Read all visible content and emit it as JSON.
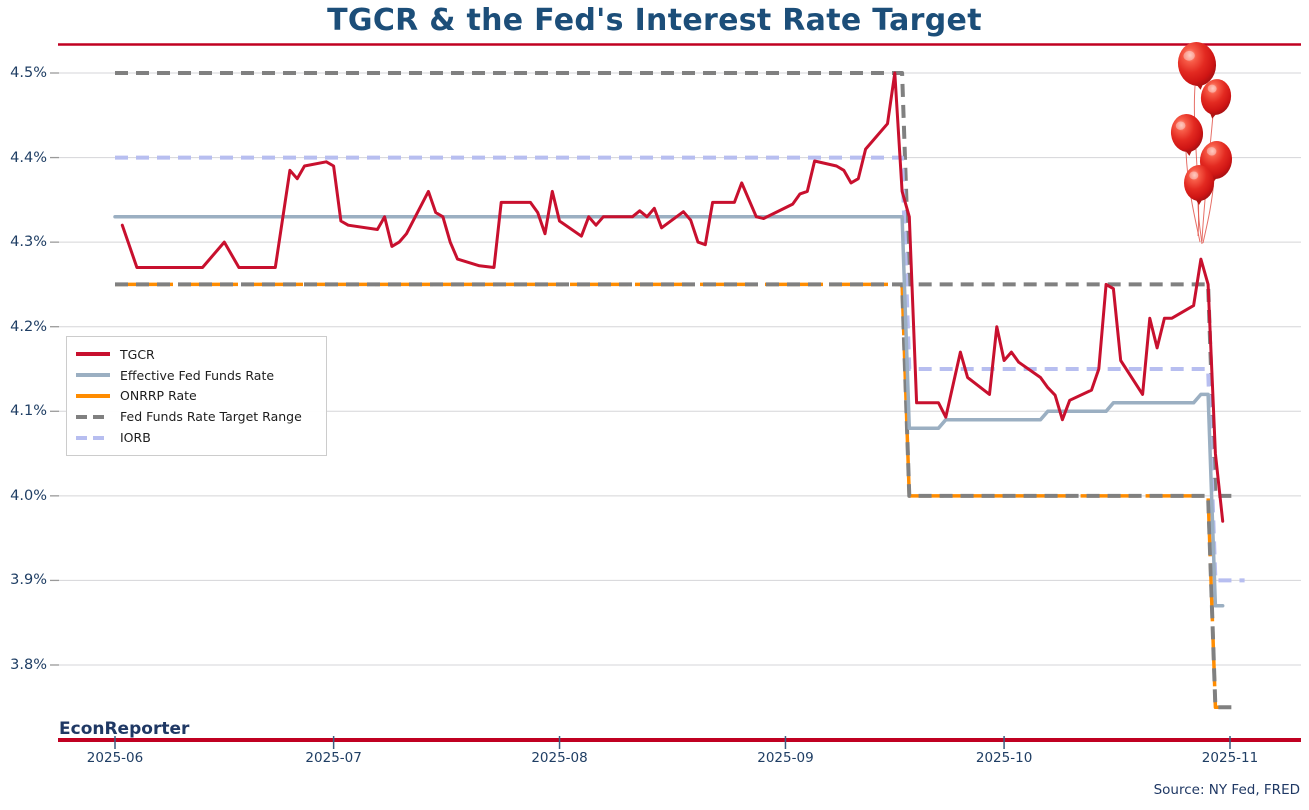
{
  "title": "TGCR & the Fed's Interest Rate Target",
  "branding": {
    "watermark": "EconReporter",
    "source": "Source: NY Fed, FRED"
  },
  "colors": {
    "title": "#1C4E79",
    "axis_label": "#1F3E64",
    "rule_red": "#C00021",
    "grid": "#D5D5D8",
    "y_tick": "#9a9a9a",
    "x_tick": "#3c5e80",
    "tgcr": "#C8102E",
    "effr": "#9BAFC2",
    "onrrp": "#FF8C00",
    "target": "#808080",
    "iorb": "#B7BEF0",
    "balloon": "#DA1F1C"
  },
  "decoration": {
    "balloons_count": 5,
    "balloon_color": "#DA1F1C"
  },
  "legend": [
    {
      "label": "TGCR",
      "color": "#C8102E",
      "dash": "solid"
    },
    {
      "label": "Effective Fed Funds Rate",
      "color": "#9BAFC2",
      "dash": "solid"
    },
    {
      "label": "ONRRP Rate",
      "color": "#FF8C00",
      "dash": "solid"
    },
    {
      "label": "Fed Funds Rate Target Range",
      "color": "#808080",
      "dash": "dashed"
    },
    {
      "label": "IORB",
      "color": "#B7BEF0",
      "dash": "dashed"
    }
  ],
  "chart_data": {
    "type": "line",
    "title": "TGCR & the Fed's Interest Rate Target",
    "xlabel": "",
    "ylabel": "",
    "grid": "horizontal",
    "legend_position": "center-left",
    "x_axis": {
      "tick_labels": [
        "2025-06",
        "2025-07",
        "2025-08",
        "2025-09",
        "2025-10",
        "2025-11"
      ],
      "tick_dates": [
        "2025-06-01",
        "2025-07-01",
        "2025-08-01",
        "2025-09-01",
        "2025-10-01",
        "2025-11-01"
      ],
      "range": [
        "2025-05-24",
        "2025-11-10"
      ]
    },
    "y_axis": {
      "tick_labels": [
        "4.5%",
        "4.4%",
        "4.3%",
        "4.2%",
        "4.1%",
        "4.0%",
        "3.9%",
        "3.8%"
      ],
      "tick_values": [
        4.5,
        4.4,
        4.3,
        4.2,
        4.1,
        4.0,
        3.9,
        3.8
      ],
      "range": [
        3.72,
        4.53
      ],
      "unit": "percent"
    },
    "series": [
      {
        "name": "ONRRP Rate",
        "color": "#FF8C00",
        "width": 3.5,
        "dash": "58 7",
        "points": [
          [
            "2025-06-01",
            4.25
          ],
          [
            "2025-09-17",
            4.25
          ],
          [
            "2025-09-18",
            4.0
          ],
          [
            "2025-10-29",
            4.0
          ],
          [
            "2025-10-30",
            3.75
          ],
          [
            "2025-11-01",
            3.75
          ]
        ]
      },
      {
        "name": "Fed Funds Rate Target Range (lower)",
        "color": "#808080",
        "width": 4,
        "dash": "13 8",
        "points": [
          [
            "2025-06-01",
            4.25
          ],
          [
            "2025-09-17",
            4.25
          ],
          [
            "2025-09-18",
            4.0
          ],
          [
            "2025-10-29",
            4.0
          ],
          [
            "2025-10-30",
            3.75
          ],
          [
            "2025-11-02",
            3.75
          ]
        ]
      },
      {
        "name": "Fed Funds Rate Target Range (upper)",
        "color": "#808080",
        "width": 4,
        "dash": "13 8",
        "points": [
          [
            "2025-06-01",
            4.5
          ],
          [
            "2025-09-17",
            4.5
          ],
          [
            "2025-09-18",
            4.25
          ],
          [
            "2025-10-29",
            4.25
          ],
          [
            "2025-10-30",
            4.0
          ],
          [
            "2025-11-02",
            4.0
          ]
        ]
      },
      {
        "name": "IORB",
        "color": "#B7BEF0",
        "width": 4,
        "dash": "13 8",
        "points": [
          [
            "2025-06-01",
            4.4
          ],
          [
            "2025-09-17",
            4.4
          ],
          [
            "2025-09-18",
            4.15
          ],
          [
            "2025-10-29",
            4.15
          ],
          [
            "2025-10-30",
            3.9
          ],
          [
            "2025-11-03",
            3.9
          ]
        ]
      },
      {
        "name": "Effective Fed Funds Rate",
        "color": "#9BAFC2",
        "width": 3.5,
        "dash": "none",
        "points": [
          [
            "2025-06-01",
            4.33
          ],
          [
            "2025-09-17",
            4.33
          ],
          [
            "2025-09-18",
            4.08
          ],
          [
            "2025-09-22",
            4.08
          ],
          [
            "2025-09-23",
            4.09
          ],
          [
            "2025-10-06",
            4.09
          ],
          [
            "2025-10-07",
            4.1
          ],
          [
            "2025-10-15",
            4.1
          ],
          [
            "2025-10-16",
            4.11
          ],
          [
            "2025-10-27",
            4.11
          ],
          [
            "2025-10-28",
            4.12
          ],
          [
            "2025-10-29",
            4.12
          ],
          [
            "2025-10-30",
            3.87
          ],
          [
            "2025-10-31",
            3.87
          ]
        ]
      },
      {
        "name": "TGCR",
        "color": "#C8102E",
        "width": 3,
        "dash": "none",
        "points": [
          [
            "2025-06-02",
            4.32
          ],
          [
            "2025-06-04",
            4.27
          ],
          [
            "2025-06-09",
            4.27
          ],
          [
            "2025-06-13",
            4.27
          ],
          [
            "2025-06-16",
            4.3
          ],
          [
            "2025-06-18",
            4.27
          ],
          [
            "2025-06-23",
            4.27
          ],
          [
            "2025-06-25",
            4.385
          ],
          [
            "2025-06-26",
            4.375
          ],
          [
            "2025-06-27",
            4.39
          ],
          [
            "2025-06-30",
            4.395
          ],
          [
            "2025-07-01",
            4.39
          ],
          [
            "2025-07-02",
            4.325
          ],
          [
            "2025-07-03",
            4.32
          ],
          [
            "2025-07-07",
            4.315
          ],
          [
            "2025-07-08",
            4.33
          ],
          [
            "2025-07-09",
            4.295
          ],
          [
            "2025-07-10",
            4.3
          ],
          [
            "2025-07-11",
            4.31
          ],
          [
            "2025-07-14",
            4.36
          ],
          [
            "2025-07-15",
            4.335
          ],
          [
            "2025-07-16",
            4.33
          ],
          [
            "2025-07-17",
            4.3
          ],
          [
            "2025-07-18",
            4.28
          ],
          [
            "2025-07-21",
            4.272
          ],
          [
            "2025-07-23",
            4.27
          ],
          [
            "2025-07-24",
            4.347
          ],
          [
            "2025-07-28",
            4.347
          ],
          [
            "2025-07-29",
            4.335
          ],
          [
            "2025-07-30",
            4.31
          ],
          [
            "2025-07-31",
            4.36
          ],
          [
            "2025-08-01",
            4.325
          ],
          [
            "2025-08-04",
            4.307
          ],
          [
            "2025-08-05",
            4.33
          ],
          [
            "2025-08-06",
            4.32
          ],
          [
            "2025-08-07",
            4.33
          ],
          [
            "2025-08-11",
            4.33
          ],
          [
            "2025-08-12",
            4.337
          ],
          [
            "2025-08-13",
            4.33
          ],
          [
            "2025-08-14",
            4.34
          ],
          [
            "2025-08-15",
            4.317
          ],
          [
            "2025-08-18",
            4.336
          ],
          [
            "2025-08-19",
            4.326
          ],
          [
            "2025-08-20",
            4.3
          ],
          [
            "2025-08-21",
            4.297
          ],
          [
            "2025-08-22",
            4.347
          ],
          [
            "2025-08-25",
            4.347
          ],
          [
            "2025-08-26",
            4.37
          ],
          [
            "2025-08-27",
            4.35
          ],
          [
            "2025-08-28",
            4.33
          ],
          [
            "2025-08-29",
            4.328
          ],
          [
            "2025-09-02",
            4.345
          ],
          [
            "2025-09-03",
            4.357
          ],
          [
            "2025-09-04",
            4.36
          ],
          [
            "2025-09-05",
            4.396
          ],
          [
            "2025-09-08",
            4.39
          ],
          [
            "2025-09-09",
            4.385
          ],
          [
            "2025-09-10",
            4.37
          ],
          [
            "2025-09-11",
            4.375
          ],
          [
            "2025-09-12",
            4.41
          ],
          [
            "2025-09-15",
            4.44
          ],
          [
            "2025-09-16",
            4.5
          ],
          [
            "2025-09-17",
            4.36
          ],
          [
            "2025-09-18",
            4.33
          ],
          [
            "2025-09-19",
            4.11
          ],
          [
            "2025-09-22",
            4.11
          ],
          [
            "2025-09-23",
            4.093
          ],
          [
            "2025-09-25",
            4.17
          ],
          [
            "2025-09-26",
            4.14
          ],
          [
            "2025-09-29",
            4.12
          ],
          [
            "2025-09-30",
            4.2
          ],
          [
            "2025-10-01",
            4.16
          ],
          [
            "2025-10-02",
            4.17
          ],
          [
            "2025-10-03",
            4.158
          ],
          [
            "2025-10-06",
            4.14
          ],
          [
            "2025-10-07",
            4.128
          ],
          [
            "2025-10-08",
            4.119
          ],
          [
            "2025-10-09",
            4.09
          ],
          [
            "2025-10-10",
            4.113
          ],
          [
            "2025-10-13",
            4.125
          ],
          [
            "2025-10-14",
            4.15
          ],
          [
            "2025-10-15",
            4.25
          ],
          [
            "2025-10-16",
            4.245
          ],
          [
            "2025-10-17",
            4.16
          ],
          [
            "2025-10-20",
            4.12
          ],
          [
            "2025-10-21",
            4.21
          ],
          [
            "2025-10-22",
            4.175
          ],
          [
            "2025-10-23",
            4.21
          ],
          [
            "2025-10-24",
            4.21
          ],
          [
            "2025-10-27",
            4.225
          ],
          [
            "2025-10-28",
            4.28
          ],
          [
            "2025-10-29",
            4.25
          ],
          [
            "2025-10-30",
            4.05
          ],
          [
            "2025-10-31",
            3.97
          ]
        ]
      }
    ]
  }
}
